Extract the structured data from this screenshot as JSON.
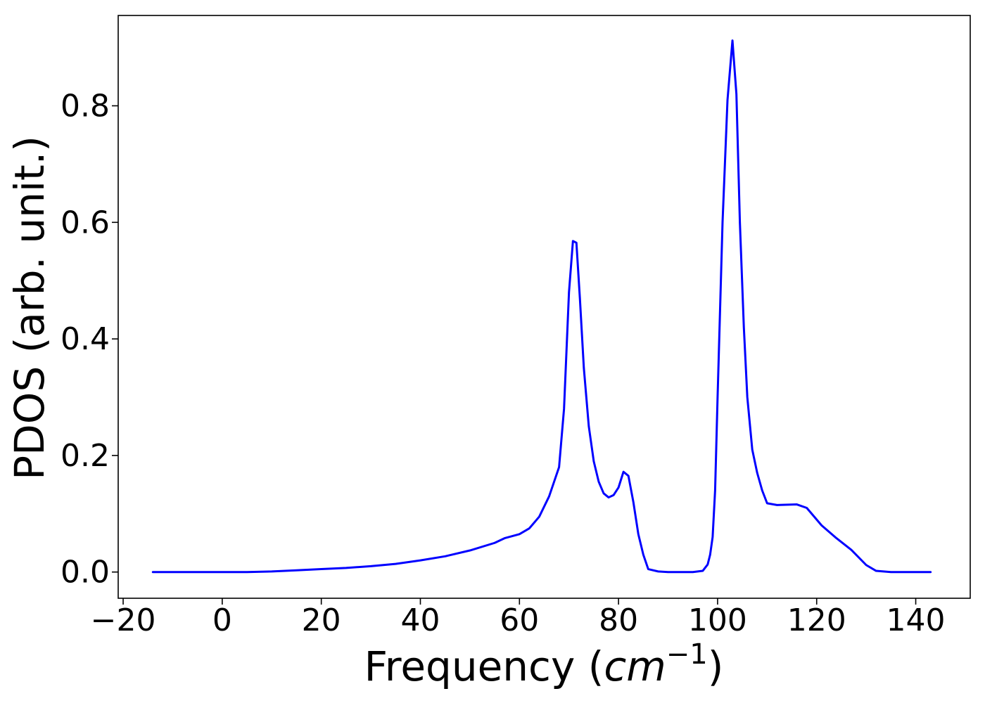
{
  "chart_data": {
    "type": "line",
    "title": "",
    "xlabel": {
      "prefix": "Frequency (",
      "math": "cm",
      "superscript": "−1",
      "suffix": ")"
    },
    "ylabel": "PDOS (arb. unit.)",
    "xlim": [
      -21,
      151
    ],
    "ylim": [
      -0.045,
      0.955
    ],
    "x_ticks": [
      {
        "value": -20,
        "label": "−20"
      },
      {
        "value": 0,
        "label": "0"
      },
      {
        "value": 20,
        "label": "20"
      },
      {
        "value": 40,
        "label": "40"
      },
      {
        "value": 60,
        "label": "60"
      },
      {
        "value": 80,
        "label": "80"
      },
      {
        "value": 100,
        "label": "100"
      },
      {
        "value": 120,
        "label": "120"
      },
      {
        "value": 140,
        "label": "140"
      }
    ],
    "y_ticks": [
      {
        "value": 0.0,
        "label": "0.0"
      },
      {
        "value": 0.2,
        "label": "0.2"
      },
      {
        "value": 0.4,
        "label": "0.4"
      },
      {
        "value": 0.6,
        "label": "0.6"
      },
      {
        "value": 0.8,
        "label": "0.8"
      }
    ],
    "grid": false,
    "legend": "none",
    "series": [
      {
        "color": "#0000ff",
        "x": [
          -14,
          0,
          5,
          10,
          15,
          20,
          25,
          30,
          35,
          40,
          45,
          50,
          55,
          57,
          60,
          62,
          64,
          66,
          67,
          68,
          69,
          70,
          70.8,
          71.5,
          72.2,
          73,
          74,
          75,
          76,
          77,
          78,
          79,
          80,
          81,
          82,
          83,
          84,
          85,
          86,
          88,
          90,
          95,
          97,
          98,
          98.5,
          99,
          99.5,
          100,
          101,
          102,
          103,
          103.8,
          104.5,
          105.3,
          106,
          107,
          108,
          109,
          110,
          112,
          116,
          118,
          121,
          124,
          127,
          130,
          132,
          135,
          143
        ],
        "y": [
          0,
          0,
          0,
          0.001,
          0.003,
          0.005,
          0.007,
          0.01,
          0.014,
          0.02,
          0.027,
          0.037,
          0.05,
          0.058,
          0.065,
          0.075,
          0.095,
          0.13,
          0.155,
          0.18,
          0.28,
          0.48,
          0.568,
          0.565,
          0.47,
          0.35,
          0.25,
          0.19,
          0.155,
          0.135,
          0.128,
          0.132,
          0.145,
          0.172,
          0.165,
          0.12,
          0.065,
          0.03,
          0.005,
          0.001,
          0,
          0,
          0.002,
          0.013,
          0.03,
          0.06,
          0.14,
          0.3,
          0.6,
          0.81,
          0.912,
          0.82,
          0.6,
          0.42,
          0.3,
          0.21,
          0.17,
          0.14,
          0.118,
          0.115,
          0.116,
          0.11,
          0.08,
          0.058,
          0.038,
          0.012,
          0.002,
          0,
          0
        ]
      }
    ]
  }
}
